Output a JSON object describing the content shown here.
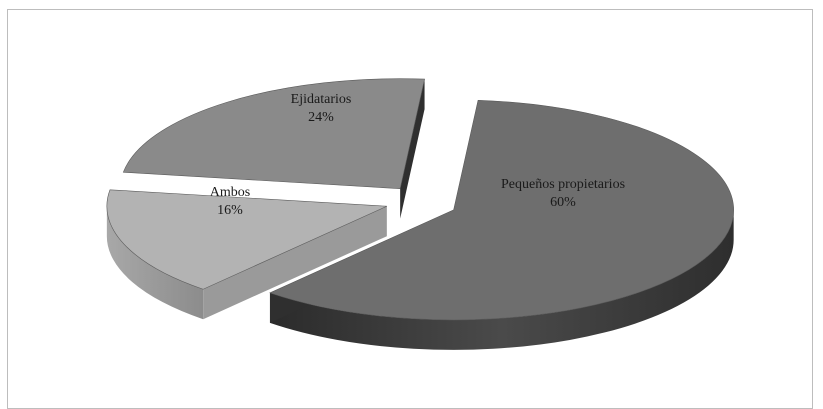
{
  "chart_data": {
    "type": "pie",
    "style": "3d-exploded",
    "title": "",
    "slices": [
      {
        "label": "Pequeños propietarios",
        "value": 60,
        "display": "60%",
        "color": "#6e6e6e"
      },
      {
        "label": "Ambos",
        "value": 16,
        "display": "16%",
        "color": "#b3b3b3"
      },
      {
        "label": "Ejidatarios",
        "value": 24,
        "display": "24%",
        "color": "#8a8a8a"
      }
    ],
    "legend": "none",
    "labels_position": "inside"
  }
}
